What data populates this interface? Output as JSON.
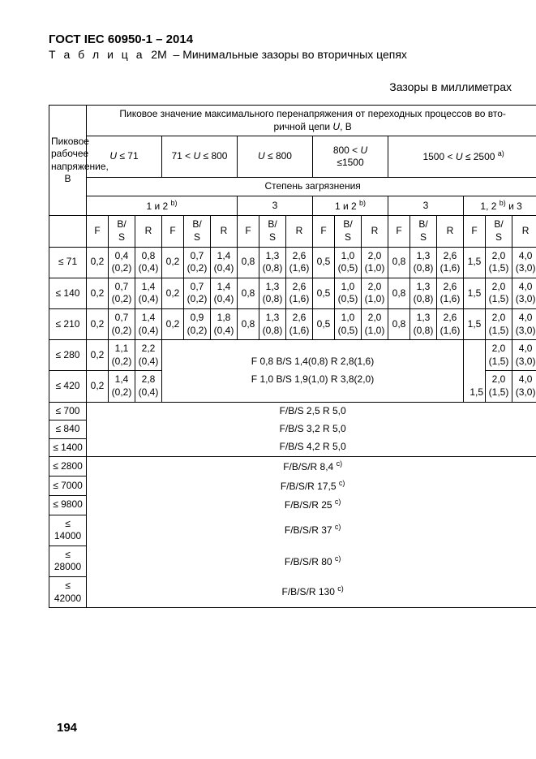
{
  "document_id": "ГОСТ IEC 60950-1 – 2014",
  "table_label_prefix": "Т а б л и ц а",
  "table_number": "2M",
  "table_title": "Минимальные зазоры во вторичных цепях",
  "units_line": "Зазоры в миллиметрах",
  "page_number": "194",
  "col1_header": "Пиковое рабочее напряжение, В",
  "header_line1": "Пиковое значение максимального перенапряжения от переходных процессов во вторичной цепи U, В",
  "u_ranges": {
    "r1": "U ≤ 71",
    "r2": "71 < U ≤ 800",
    "r3": "U ≤ 800",
    "r4": "800 < U ≤1500",
    "r5": "1500 < U ≤ 2500"
  },
  "sup_a": "а)",
  "sup_b": "b)",
  "sup_c": "с)",
  "pollution_header": "Степень загрязнения",
  "pollution": {
    "g12": "1 и 2",
    "g3": "3",
    "g123": "1, 2",
    "g123_suffix": " и 3"
  },
  "sub_f": "F",
  "sub_bs": "B/S",
  "sub_r": "R",
  "rows": {
    "v71": "≤ 71",
    "v140": "≤ 140",
    "v210": "≤ 210",
    "v280": "≤ 280",
    "v420": "≤ 420",
    "v700": "≤ 700",
    "v840": "≤ 840",
    "v1400": "≤ 1400",
    "v2800": "≤ 2800",
    "v7000": "≤ 7000",
    "v9800": "≤ 9800",
    "v14000": "≤ 14000",
    "v28000": "≤ 28000",
    "v42000": "≤ 42000"
  },
  "data": {
    "r71": {
      "c1": "0,2",
      "c2": "0,4 (0,2)",
      "c3": "0,8 (0,4)",
      "c4": "0,2",
      "c5": "0,7 (0,2)",
      "c6": "1,4 (0,4)",
      "c7": "0,8",
      "c8": "1,3 (0,8)",
      "c9": "2,6 (1,6)",
      "c10": "0,5",
      "c11": "1,0 (0,5)",
      "c12": "2,0 (1,0)",
      "c13": "0,8",
      "c14": "1,3 (0,8)",
      "c15": "2,6 (1,6)",
      "c16": "1,5",
      "c17": "2,0 (1,5)",
      "c18": "4,0 (3,0)"
    },
    "r140": {
      "c1": "0,2",
      "c2": "0,7 (0,2)",
      "c3": "1,4 (0,4)",
      "c4": "0,2",
      "c5": "0,7 (0,2)",
      "c6": "1,4 (0,4)",
      "c7": "0,8",
      "c8": "1,3 (0,8)",
      "c9": "2,6 (1,6)",
      "c10": "0,5",
      "c11": "1,0 (0,5)",
      "c12": "2,0 (1,0)",
      "c13": "0,8",
      "c14": "1,3 (0,8)",
      "c15": "2,6 (1,6)",
      "c16": "1,5",
      "c17": "2,0 (1,5)",
      "c18": "4,0 (3,0)"
    },
    "r210": {
      "c1": "0,2",
      "c2": "0,7 (0,2)",
      "c3": "1,4 (0,4)",
      "c4": "0,2",
      "c5": "0,9 (0,2)",
      "c6": "1,8 (0,4)",
      "c7": "0,8",
      "c8": "1,3 (0,8)",
      "c9": "2,6 (1,6)",
      "c10": "0,5",
      "c11": "1,0 (0,5)",
      "c12": "2,0 (1,0)",
      "c13": "0,8",
      "c14": "1,3 (0,8)",
      "c15": "2,6 (1,6)",
      "c16": "1,5",
      "c17": "2,0 (1,5)",
      "c18": "4,0 (3,0)"
    },
    "r280": {
      "c1": "0,2",
      "c2": "1,1 (0,2)",
      "c3": "2,2 (0,4)",
      "span": "F 0,8  B/S 1,4(0,8)  R 2,8(1,6)",
      "c17a": "1,5",
      "c17": "2,0 (1,5)",
      "c18": "4,0 (3,0)"
    },
    "r420": {
      "c1": "0,2",
      "c2": "1,4 (0,2)",
      "c3": "2,8 (0,4)",
      "span": "F 1,0  B/S 1,9(1,0)  R 3,8(2,0)",
      "c17a": "1,5",
      "c17": "2,0 (1,5)",
      "c18": "4,0 (3,0)"
    },
    "r700": "F/B/S 2,5  R 5,0",
    "r840": "F/B/S 3,2  R 5,0",
    "r1400": "F/B/S 4,2  R 5,0",
    "r2800": "F/B/S/R  8,4",
    "r7000": "F/B/S/R  17,5",
    "r9800": "F/B/S/R  25",
    "r14000": "F/B/S/R  37",
    "r28000": "F/B/S/R  80",
    "r42000": "F/B/S/R  130"
  }
}
